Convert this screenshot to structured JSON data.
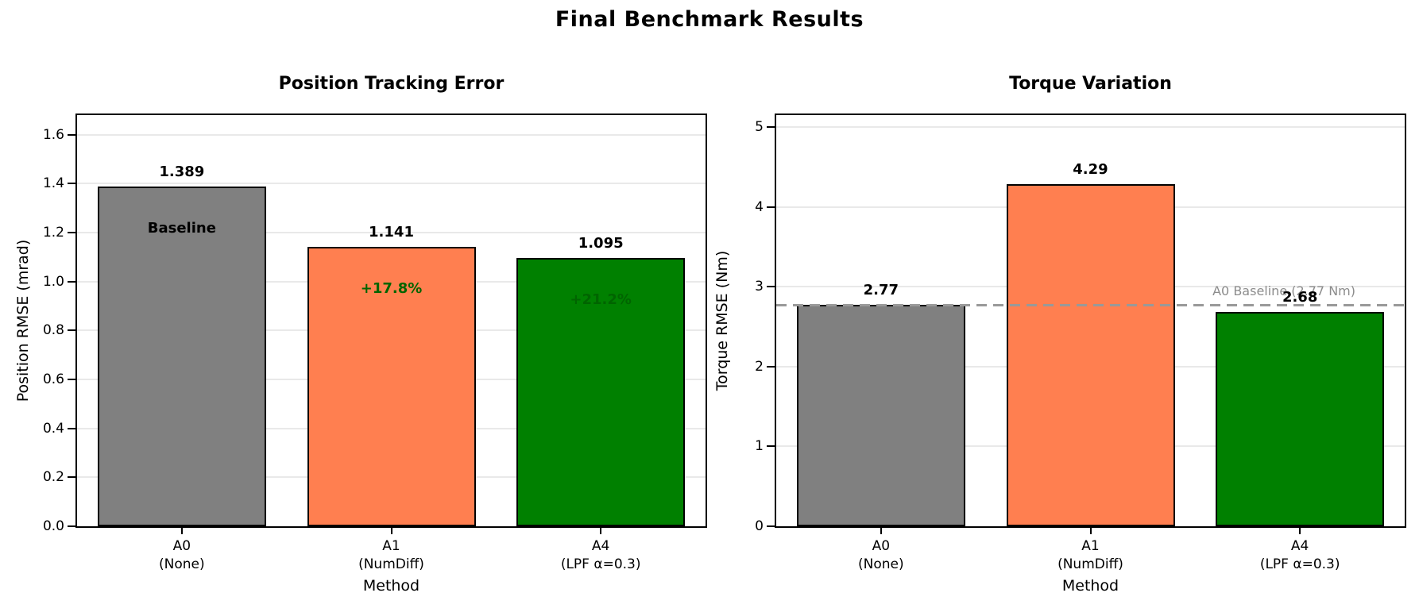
{
  "figure": {
    "title": "Final Benchmark Results"
  },
  "chart_data": [
    {
      "type": "bar",
      "title": "Position Tracking Error",
      "xlabel": "Method",
      "ylabel": "Position RMSE (mrad)",
      "categories": [
        [
          "A0",
          "(None)"
        ],
        [
          "A1",
          "(NumDiff)"
        ],
        [
          "A4",
          "(LPF α=0.3)"
        ]
      ],
      "values": [
        1.389,
        1.141,
        1.095
      ],
      "value_labels": [
        "1.389",
        "1.141",
        "1.095"
      ],
      "bar_colors": [
        "#808080",
        "#FF7F50",
        "#008000"
      ],
      "bar_edge_color": "#000000",
      "inside_labels": [
        {
          "text": "Baseline",
          "color": "#000000"
        },
        {
          "text": "+17.8%",
          "color": "#006400"
        },
        {
          "text": "+21.2%",
          "color": "#006400"
        }
      ],
      "yticks": [
        "0.0",
        "0.2",
        "0.4",
        "0.6",
        "0.8",
        "1.0",
        "1.2",
        "1.4",
        "1.6"
      ],
      "ylim": [
        0,
        1.68
      ],
      "grid": true,
      "gridline_color": "#e9e9e9",
      "legend": null
    },
    {
      "type": "bar",
      "title": "Torque Variation",
      "xlabel": "Method",
      "ylabel": "Torque RMSE (Nm)",
      "categories": [
        [
          "A0",
          "(None)"
        ],
        [
          "A1",
          "(NumDiff)"
        ],
        [
          "A4",
          "(LPF α=0.3)"
        ]
      ],
      "values": [
        2.77,
        4.29,
        2.68
      ],
      "value_labels": [
        "2.77",
        "4.29",
        "2.68"
      ],
      "bar_colors": [
        "#808080",
        "#FF7F50",
        "#008000"
      ],
      "bar_edge_color": "#000000",
      "inside_labels": null,
      "yticks": [
        "0",
        "1",
        "2",
        "3",
        "4",
        "5"
      ],
      "ylim": [
        0,
        5.15
      ],
      "grid": true,
      "gridline_color": "#e9e9e9",
      "baseline": {
        "y": 2.77,
        "label": "A0 Baseline (2.77 Nm)",
        "line_color": "#999999",
        "label_color": "#8c8c8c"
      },
      "legend": null
    }
  ]
}
